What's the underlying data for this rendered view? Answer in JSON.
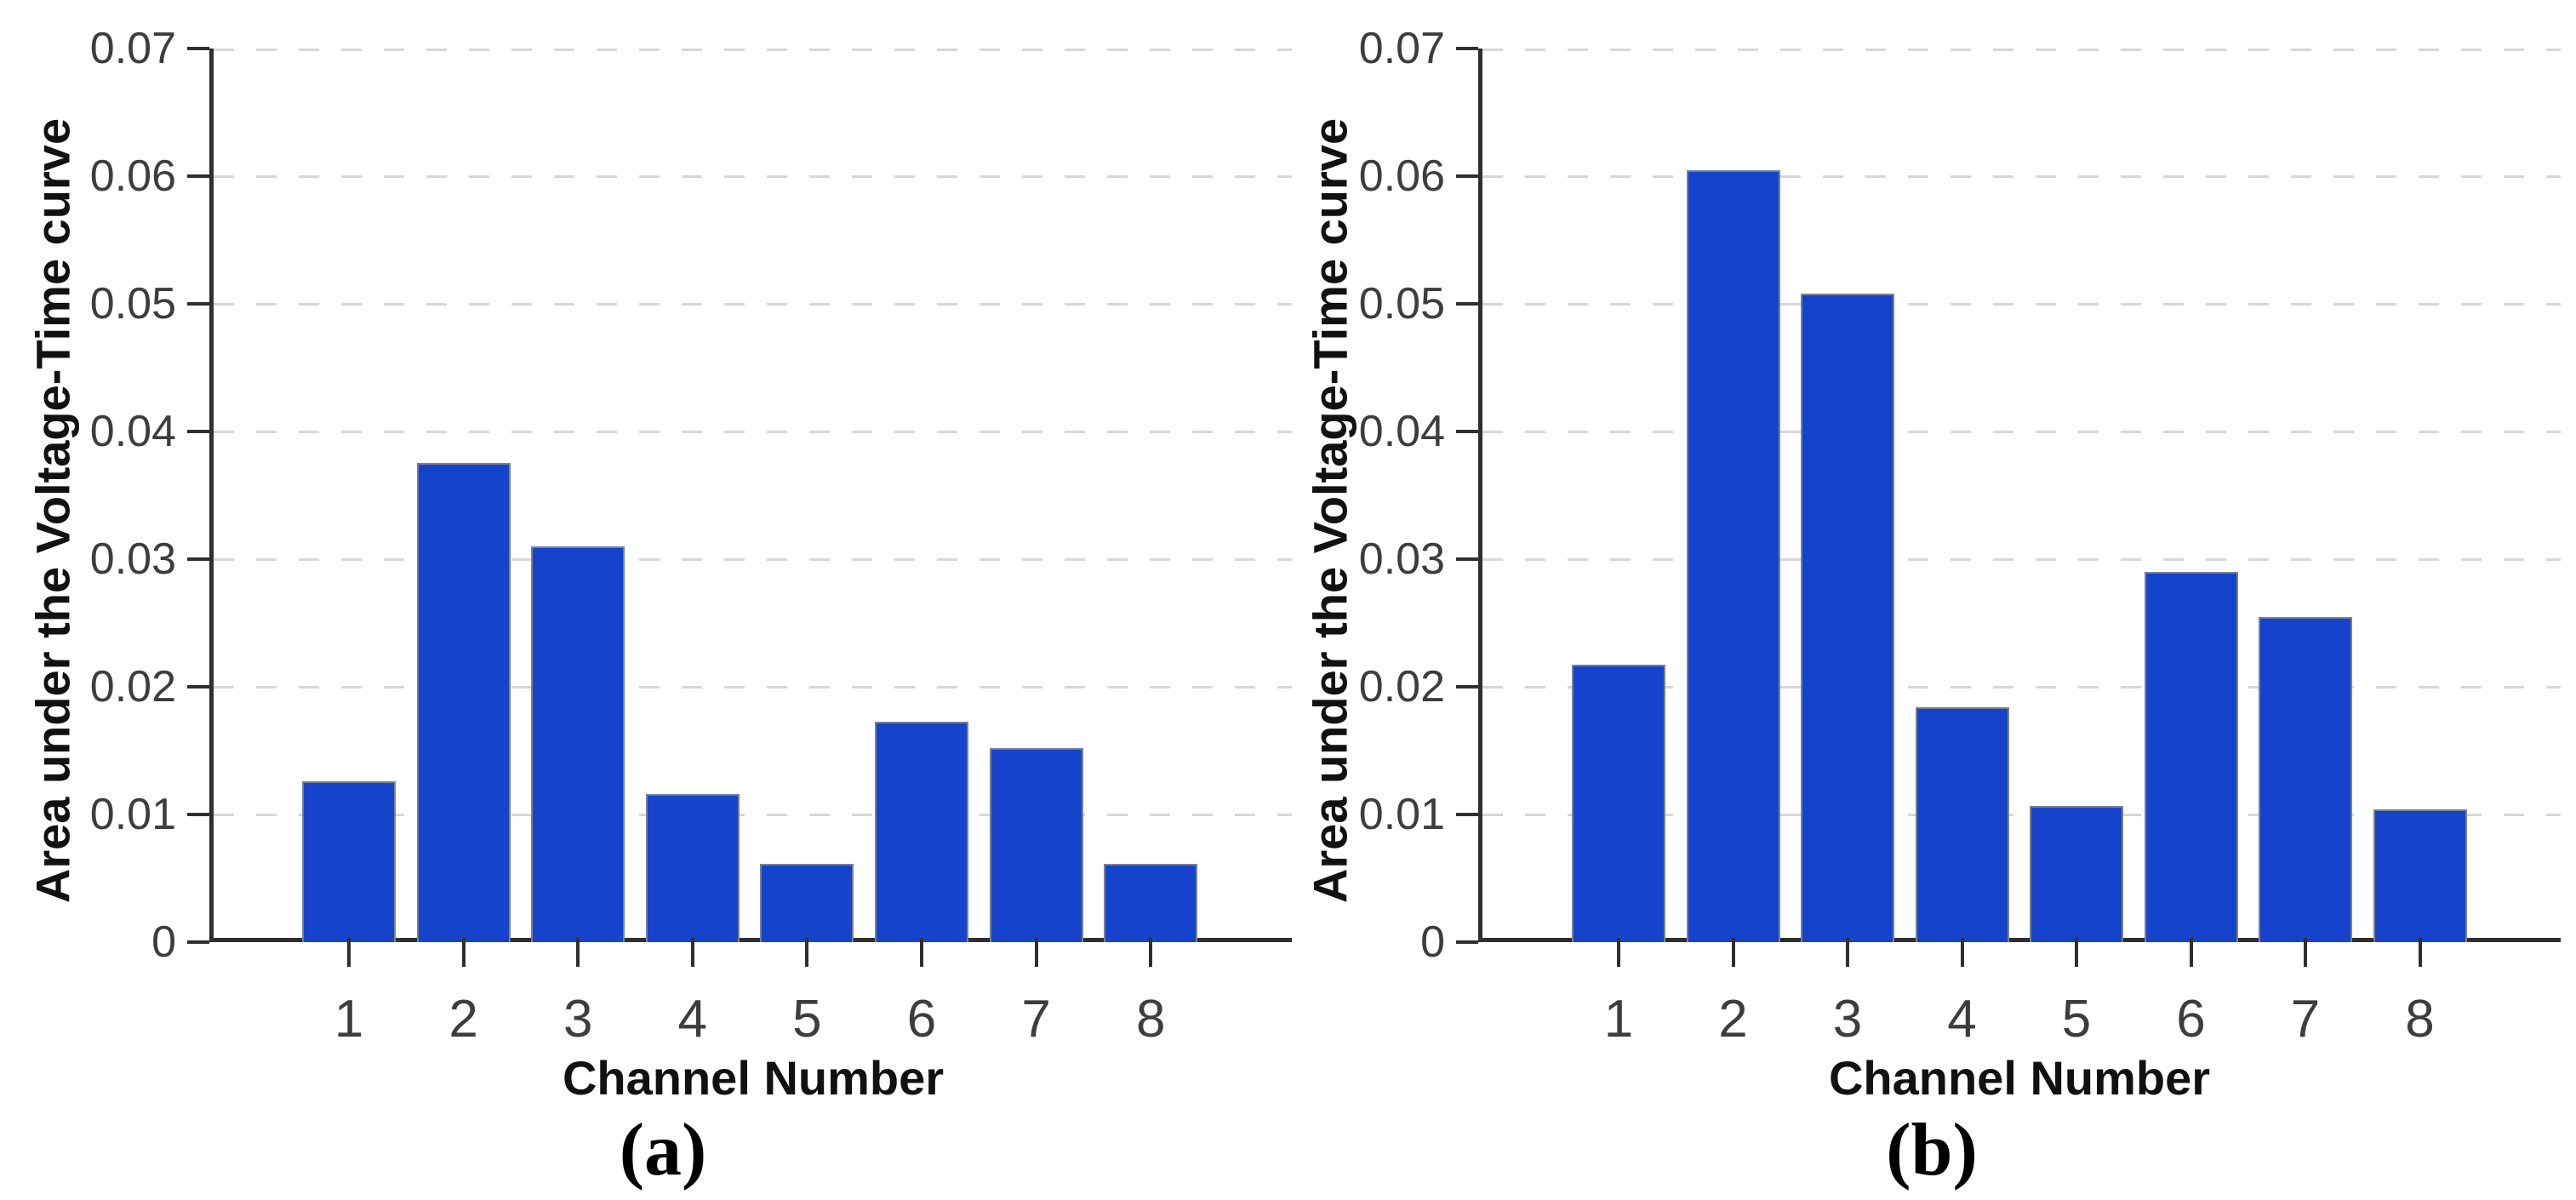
{
  "figure": {
    "description": "Two-panel bar figure: area under the voltage-time curve per channel",
    "background": "#ffffff"
  },
  "colors": {
    "bar_fill": "#1543cb",
    "bar_edge": "#798192",
    "axis": "#2f2f2f",
    "grid": "#d7d7d7",
    "tick_text": "#3d3d3d",
    "label_text": "#111111"
  },
  "chart_data": [
    {
      "type": "bar",
      "caption": "(a)",
      "title": "",
      "categories": [
        "1",
        "2",
        "3",
        "4",
        "5",
        "6",
        "7",
        "8"
      ],
      "values": [
        0.0126,
        0.0375,
        0.031,
        0.0116,
        0.0061,
        0.0173,
        0.0152,
        0.0061
      ],
      "xlabel": "Channel Number",
      "ylabel": "Area under the Voltage-Time curve",
      "ylim": [
        0,
        0.07
      ],
      "yticks": [
        0,
        0.01,
        0.02,
        0.03,
        0.04,
        0.05,
        0.06,
        0.07
      ],
      "ytick_labels": [
        "0",
        "0.01",
        "0.02",
        "0.03",
        "0.04",
        "0.05",
        "0.06",
        "0.07"
      ],
      "grid": "horizontal-dashed",
      "legend": "none",
      "bar_color": "#1543cb"
    },
    {
      "type": "bar",
      "caption": "(b)",
      "title": "",
      "categories": [
        "1",
        "2",
        "3",
        "4",
        "5",
        "6",
        "7",
        "8"
      ],
      "values": [
        0.0217,
        0.0605,
        0.0508,
        0.0184,
        0.0107,
        0.029,
        0.0255,
        0.0104
      ],
      "xlabel": "Channel Number",
      "ylabel": "Area under the Voltage-Time curve",
      "ylim": [
        0,
        0.07
      ],
      "yticks": [
        0,
        0.01,
        0.02,
        0.03,
        0.04,
        0.05,
        0.06,
        0.07
      ],
      "ytick_labels": [
        "0",
        "0.01",
        "0.02",
        "0.03",
        "0.04",
        "0.05",
        "0.06",
        "0.07"
      ],
      "grid": "horizontal-dashed",
      "legend": "none",
      "bar_color": "#1543cb"
    }
  ]
}
